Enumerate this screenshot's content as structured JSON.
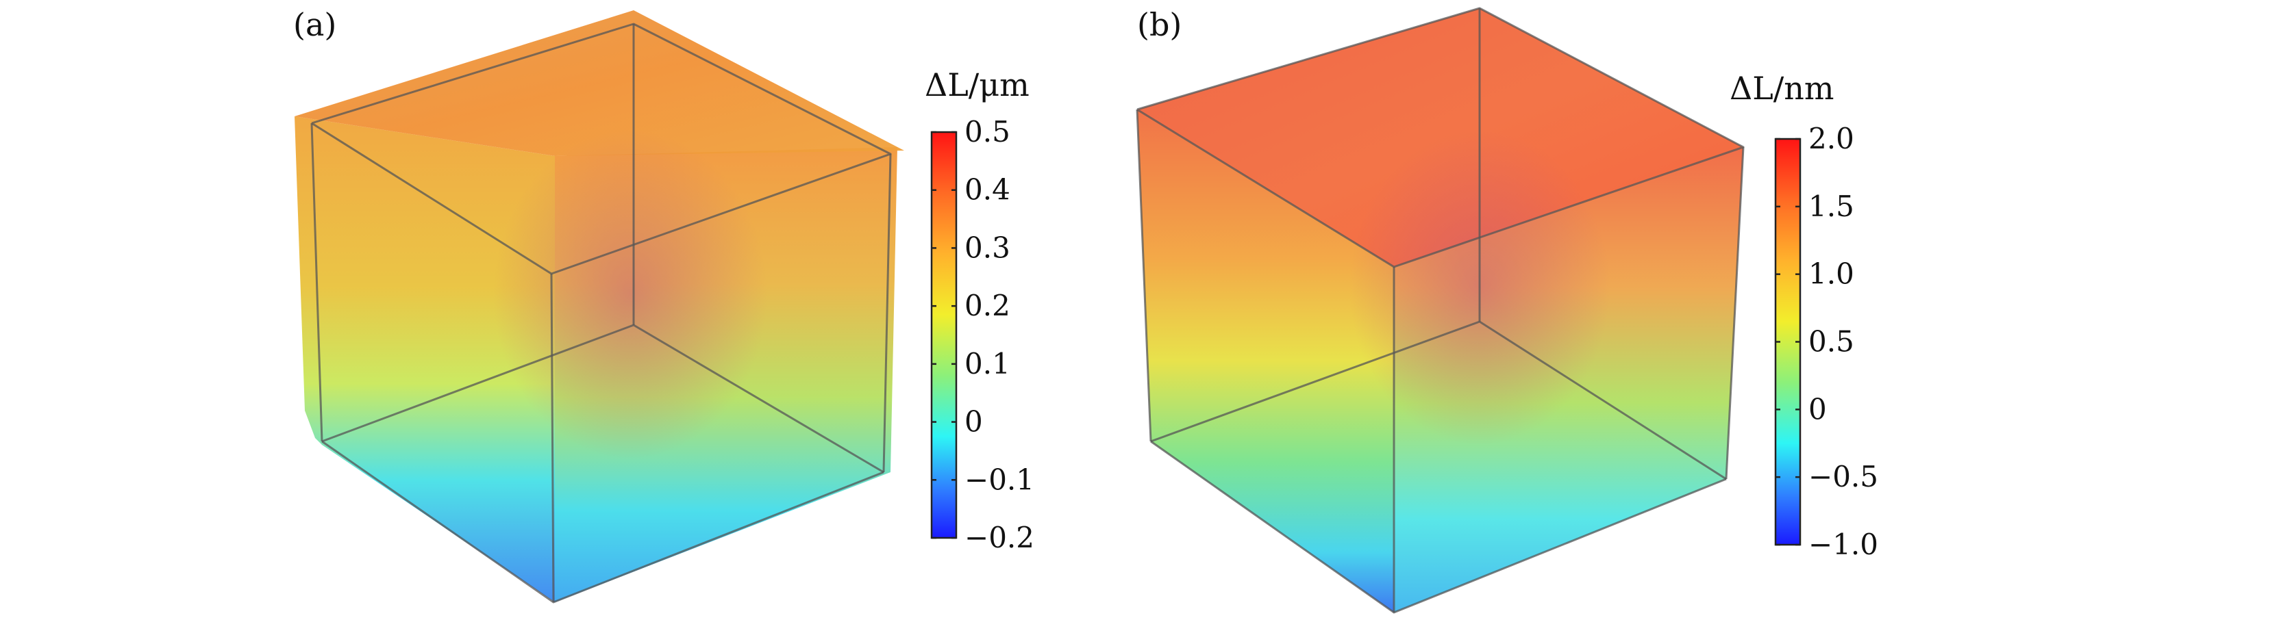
{
  "panels": [
    {
      "label": "(a)",
      "colorbar": {
        "title": "ΔL/μm",
        "ticks": [
          "0.5",
          "0.4",
          "0.3",
          "0.2",
          "0.1",
          "0",
          "−0.1",
          "−0.2"
        ]
      }
    },
    {
      "label": "(b)",
      "colorbar": {
        "title": "ΔL/nm",
        "ticks": [
          "2.0",
          "1.5",
          "1.0",
          "0.5",
          "0",
          "−0.5",
          "−1.0"
        ]
      }
    }
  ],
  "colors": {
    "jet": [
      "#1a1aff",
      "#2f7fff",
      "#2ef5f5",
      "#8cf07a",
      "#f2ee2c",
      "#ffb22c",
      "#ff6a24",
      "#ff1414"
    ],
    "edge": "#555555"
  }
}
